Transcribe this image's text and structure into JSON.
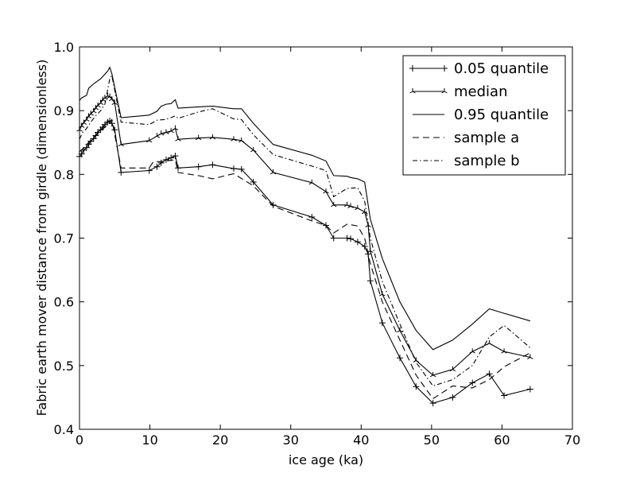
{
  "chart_data": {
    "type": "line",
    "xlabel": "ice age (ka)",
    "ylabel": "Fabric earth mover distance from girdle (dimensionless)",
    "xlim": [
      0,
      70
    ],
    "ylim": [
      0.4,
      1.0
    ],
    "xticks": [
      0,
      10,
      20,
      30,
      40,
      50,
      60,
      70
    ],
    "yticks": [
      0.4,
      0.5,
      0.6,
      0.7,
      0.8,
      0.9,
      1.0
    ],
    "grid": false,
    "legend_position": "top-right",
    "series": [
      {
        "name": "0.05 quantile",
        "style": "solid",
        "marker": "plus",
        "x": [
          0.0,
          0.3,
          0.6,
          1.0,
          1.3,
          1.6,
          2.0,
          2.3,
          2.6,
          3.0,
          3.3,
          3.6,
          4.0,
          4.3,
          4.6,
          5.0,
          5.9,
          9.9,
          11.0,
          11.6,
          12.3,
          13.0,
          13.6,
          14.0,
          16.9,
          18.9,
          21.9,
          23.0,
          24.7,
          27.5,
          33.0,
          35.0,
          36.1,
          38.0,
          38.5,
          39.5,
          40.5,
          41.0,
          41.3,
          43.0,
          45.5,
          47.8,
          50.2,
          53.0,
          55.8,
          58.2,
          60.3,
          64.0
        ],
        "y": [
          0.828,
          0.832,
          0.838,
          0.842,
          0.847,
          0.852,
          0.856,
          0.861,
          0.866,
          0.87,
          0.874,
          0.878,
          0.882,
          0.884,
          0.88,
          0.87,
          0.803,
          0.806,
          0.812,
          0.818,
          0.823,
          0.826,
          0.829,
          0.81,
          0.812,
          0.815,
          0.809,
          0.808,
          0.788,
          0.752,
          0.733,
          0.72,
          0.7,
          0.7,
          0.699,
          0.694,
          0.687,
          0.675,
          0.633,
          0.567,
          0.512,
          0.467,
          0.441,
          0.45,
          0.473,
          0.487,
          0.453,
          0.463
        ]
      },
      {
        "name": "median",
        "style": "solid",
        "marker": "tri",
        "x": [
          0.0,
          0.3,
          0.6,
          1.0,
          1.3,
          1.6,
          2.0,
          2.3,
          2.6,
          3.0,
          3.3,
          3.6,
          4.0,
          4.3,
          4.6,
          5.0,
          5.9,
          9.9,
          11.0,
          11.6,
          12.3,
          13.0,
          13.6,
          14.0,
          16.9,
          18.9,
          21.9,
          23.0,
          24.7,
          27.5,
          33.0,
          35.0,
          36.1,
          38.0,
          38.5,
          39.5,
          40.5,
          41.0,
          41.3,
          43.0,
          45.5,
          47.8,
          50.2,
          53.0,
          55.8,
          58.2,
          60.3,
          64.0
        ],
        "y": [
          0.87,
          0.876,
          0.881,
          0.886,
          0.891,
          0.895,
          0.899,
          0.904,
          0.908,
          0.912,
          0.917,
          0.92,
          0.923,
          0.922,
          0.918,
          0.912,
          0.847,
          0.853,
          0.86,
          0.864,
          0.866,
          0.868,
          0.872,
          0.855,
          0.857,
          0.858,
          0.855,
          0.853,
          0.838,
          0.803,
          0.787,
          0.773,
          0.752,
          0.752,
          0.75,
          0.747,
          0.741,
          0.72,
          0.68,
          0.612,
          0.555,
          0.508,
          0.485,
          0.494,
          0.522,
          0.535,
          0.522,
          0.513
        ]
      },
      {
        "name": "0.95 quantile",
        "style": "solid",
        "marker": "none",
        "x": [
          0.0,
          0.3,
          1.0,
          1.3,
          2.0,
          3.0,
          4.0,
          4.3,
          4.6,
          5.9,
          9.9,
          11.0,
          11.6,
          12.3,
          13.0,
          13.6,
          14.0,
          16.9,
          18.9,
          21.9,
          23.0,
          24.7,
          27.5,
          33.0,
          35.0,
          36.1,
          38.0,
          38.5,
          39.5,
          40.5,
          41.3,
          43.0,
          45.5,
          47.8,
          50.2,
          53.0,
          55.8,
          58.2,
          60.3,
          64.0
        ],
        "y": [
          0.916,
          0.92,
          0.924,
          0.935,
          0.942,
          0.95,
          0.962,
          0.968,
          0.958,
          0.889,
          0.893,
          0.899,
          0.907,
          0.91,
          0.911,
          0.917,
          0.904,
          0.906,
          0.907,
          0.903,
          0.903,
          0.88,
          0.847,
          0.83,
          0.821,
          0.798,
          0.797,
          0.795,
          0.793,
          0.788,
          0.73,
          0.668,
          0.6,
          0.555,
          0.525,
          0.54,
          0.565,
          0.589,
          0.582,
          0.57
        ]
      },
      {
        "name": "sample a",
        "style": "dashed",
        "marker": "none",
        "x": [
          0.0,
          1.0,
          2.0,
          3.0,
          4.0,
          4.6,
          5.9,
          9.9,
          10.5,
          11.6,
          13.6,
          14.0,
          16.9,
          18.9,
          21.9,
          24.7,
          27.5,
          33.0,
          35.0,
          36.1,
          38.0,
          39.5,
          40.5,
          41.3,
          43.0,
          45.5,
          47.8,
          50.2,
          53.0,
          55.8,
          58.2,
          60.3,
          64.0
        ],
        "y": [
          0.835,
          0.847,
          0.858,
          0.868,
          0.878,
          0.886,
          0.81,
          0.81,
          0.82,
          0.82,
          0.823,
          0.803,
          0.798,
          0.793,
          0.801,
          0.782,
          0.75,
          0.727,
          0.72,
          0.708,
          0.722,
          0.719,
          0.7,
          0.66,
          0.6,
          0.54,
          0.485,
          0.448,
          0.468,
          0.465,
          0.478,
          0.498,
          0.52
        ]
      },
      {
        "name": "sample b",
        "style": "dashdot",
        "marker": "none",
        "x": [
          0.0,
          0.4,
          1.0,
          1.6,
          2.3,
          3.0,
          3.6,
          4.3,
          4.6,
          5.0,
          5.9,
          9.9,
          11.0,
          12.0,
          13.0,
          13.6,
          14.0,
          16.9,
          18.9,
          21.9,
          23.0,
          24.7,
          27.5,
          33.0,
          35.0,
          36.1,
          38.0,
          39.5,
          40.5,
          41.3,
          43.0,
          45.5,
          47.8,
          50.2,
          53.0,
          55.8,
          58.2,
          60.3,
          64.0
        ],
        "y": [
          0.855,
          0.865,
          0.872,
          0.882,
          0.892,
          0.9,
          0.91,
          0.95,
          0.955,
          0.932,
          0.882,
          0.878,
          0.885,
          0.886,
          0.889,
          0.892,
          0.888,
          0.898,
          0.903,
          0.887,
          0.886,
          0.862,
          0.831,
          0.813,
          0.806,
          0.765,
          0.778,
          0.779,
          0.758,
          0.7,
          0.632,
          0.565,
          0.505,
          0.468,
          0.478,
          0.5,
          0.545,
          0.563,
          0.528
        ]
      }
    ]
  }
}
